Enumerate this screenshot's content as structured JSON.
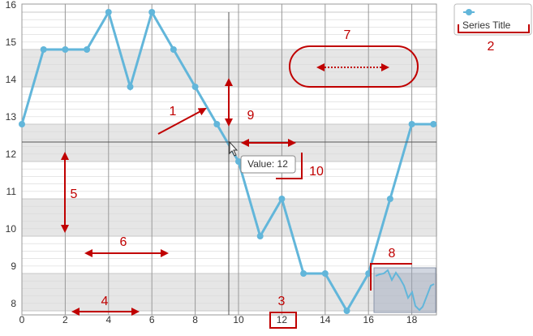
{
  "chart_data": {
    "type": "line",
    "x": [
      0,
      1,
      2,
      3,
      4,
      5,
      6,
      7,
      8,
      9,
      10,
      11,
      12,
      13,
      14,
      15,
      16,
      17,
      18,
      19
    ],
    "series": [
      {
        "name": "Series Title",
        "color": "#62b6da",
        "values": [
          13,
          15,
          15,
          15,
          16,
          14,
          16,
          15,
          14,
          13,
          12,
          10,
          11,
          9,
          9,
          8,
          9,
          11,
          13,
          13
        ]
      }
    ],
    "xlim": [
      0,
      19.1
    ],
    "xticks": [
      0,
      2,
      4,
      6,
      8,
      10,
      12,
      14,
      16,
      18
    ],
    "ylim": [
      8,
      16
    ],
    "yticks": [
      8,
      9,
      10,
      11,
      12,
      13,
      14,
      15,
      16
    ],
    "grid": true,
    "legend": "right",
    "tooltip": "Value: 12",
    "annotations": [
      "1",
      "2",
      "3",
      "4",
      "5",
      "6",
      "7",
      "8",
      "9",
      "10"
    ]
  }
}
